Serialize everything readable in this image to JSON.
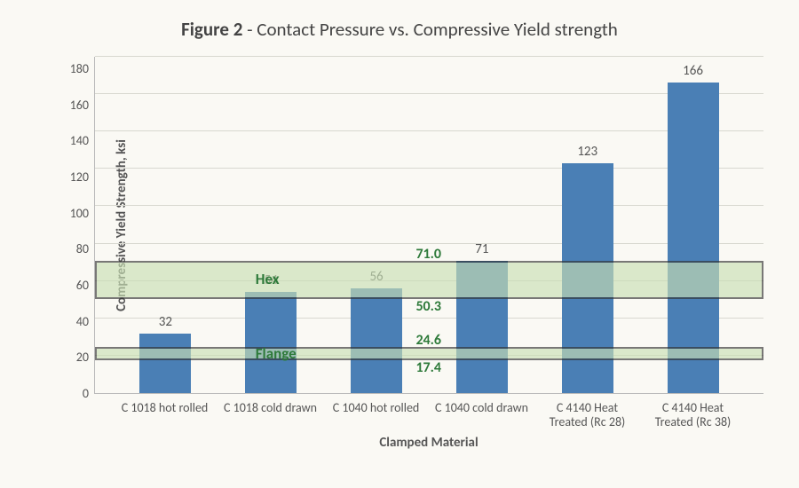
{
  "title_prefix": "Figure 2",
  "title_suffix": " - Contact Pressure vs. Compressive Yield strength",
  "title_fontsize": 21,
  "ylabel": "Compressive Yield Strength, ksi",
  "ylabel_fontsize": 15,
  "xlabel": "Clamped Material",
  "xlabel_fontsize": 15,
  "tick_fontsize": 14,
  "barlabel_fontsize": 15,
  "ylim_max": 180,
  "ytick_step": 20,
  "yticks": [
    180,
    160,
    140,
    120,
    100,
    80,
    60,
    40,
    20,
    0
  ],
  "categories": [
    "C 1018 hot rolled",
    "C 1018 cold drawn",
    "C 1040 hot rolled",
    "C 1040 cold drawn",
    "C 4140 Heat Treated (Rc 28)",
    "C 4140 Heat Treated (Rc 38)"
  ],
  "values": [
    32,
    54,
    56,
    71,
    123,
    166
  ],
  "bar_color": "#4a7fb5",
  "background_color": "#faf9f4",
  "grid_color": "#d8d8d0",
  "axis_color": "#bbbbbb",
  "text_color": "#555555",
  "band_fill": "#c9dfb4",
  "band_fill_opacity": 0.65,
  "band_border": "#333333",
  "band_label_color": "#2e7a3a",
  "bands": {
    "hex": {
      "label": "Hex",
      "low": 50.3,
      "high": 71.0
    },
    "flange": {
      "label": "Flange",
      "low": 17.4,
      "high": 24.6
    }
  }
}
